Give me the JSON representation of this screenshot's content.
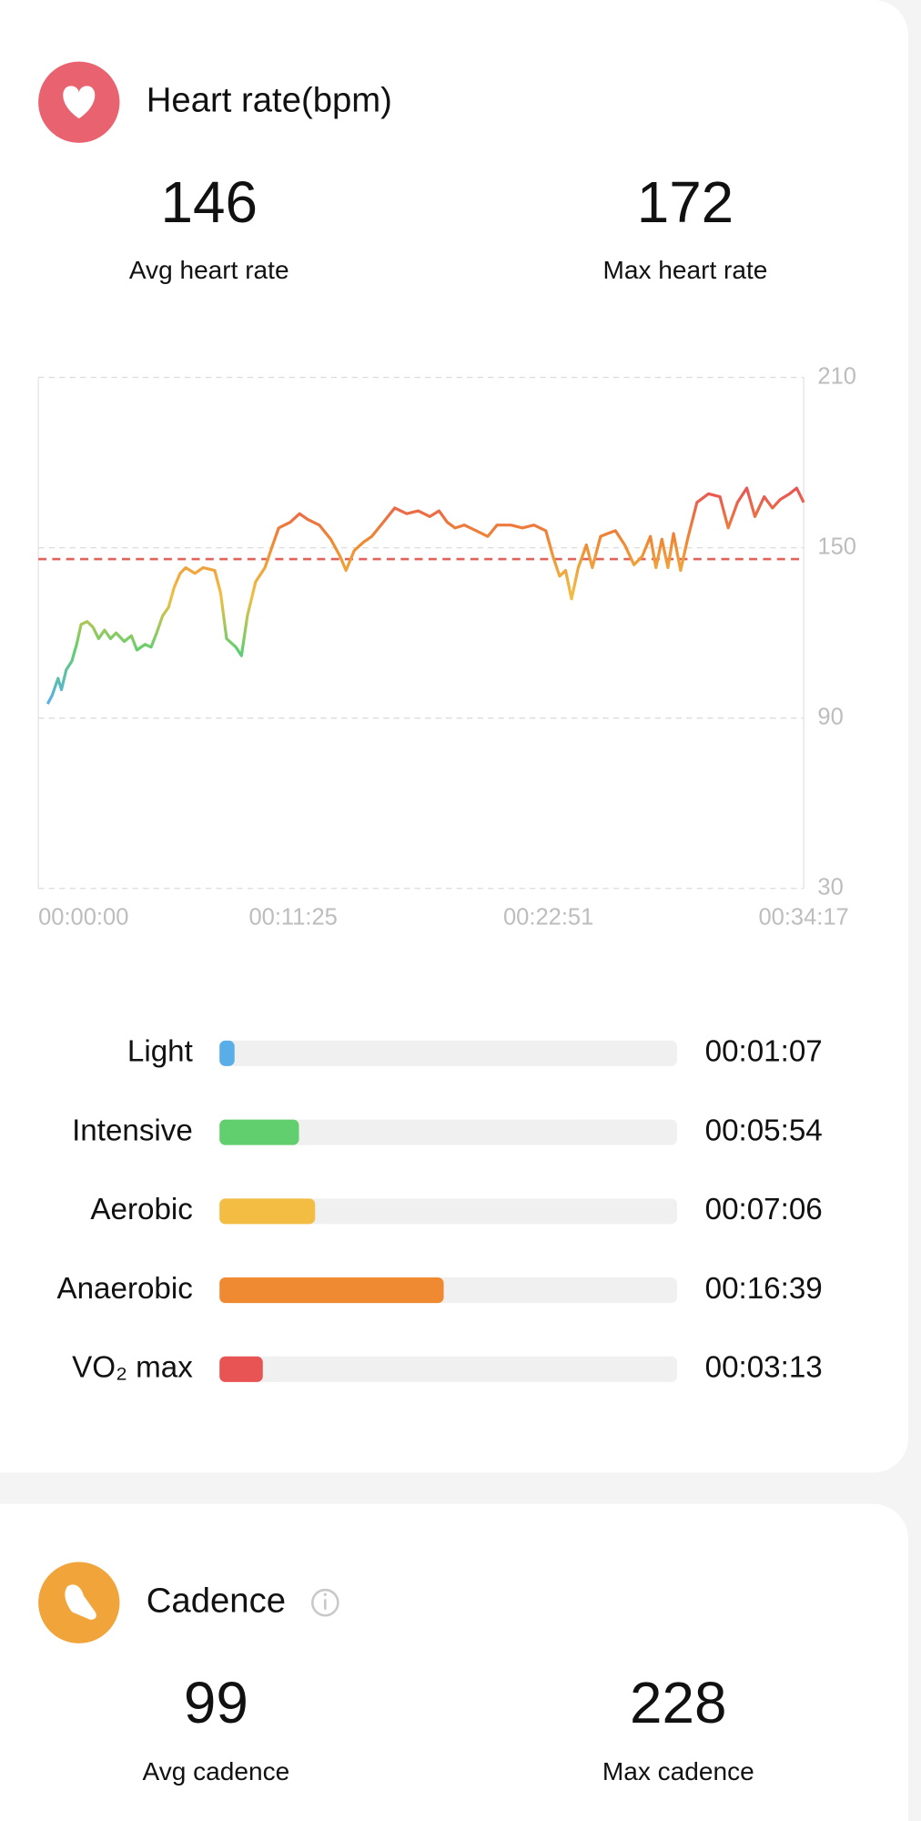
{
  "heart_rate": {
    "title": "Heart rate(bpm)",
    "stats": [
      {
        "value": 146,
        "label": "Avg heart rate"
      },
      {
        "value": 172,
        "label": "Max heart rate"
      }
    ],
    "zones": [
      {
        "name": "Light",
        "duration": "00:01:07",
        "color": "#5aaee8"
      },
      {
        "name": "Intensive",
        "duration": "00:05:54",
        "color": "#62cf6e"
      },
      {
        "name": "Aerobic",
        "duration": "00:07:06",
        "color": "#f2bd42"
      },
      {
        "name": "Anaerobic",
        "duration": "00:16:39",
        "color": "#ef8a33"
      },
      {
        "name": "VO₂ max",
        "duration": "00:03:13",
        "color": "#e85454"
      }
    ]
  },
  "chart_data": {
    "type": "line",
    "x": [
      25,
      37,
      53,
      62,
      75,
      90,
      103,
      115,
      131,
      147,
      162,
      178,
      194,
      209,
      231,
      250,
      265,
      287,
      303,
      318,
      334,
      350,
      365,
      381,
      396,
      421,
      443,
      474,
      490,
      506,
      531,
      546,
      562,
      584,
      609,
      630,
      646,
      677,
      702,
      724,
      755,
      786,
      811,
      827,
      849,
      874,
      896,
      927,
      958,
      990,
      1021,
      1052,
      1077,
      1099,
      1120,
      1145,
      1177,
      1208,
      1233,
      1270,
      1301,
      1332,
      1364,
      1383,
      1401,
      1417,
      1433,
      1451,
      1473,
      1489,
      1511,
      1530,
      1551,
      1576,
      1601,
      1623,
      1645,
      1660,
      1676,
      1692,
      1707,
      1726,
      1745,
      1770,
      1801,
      1832,
      1854,
      1879,
      1904,
      1926,
      1951,
      1973,
      1994,
      2019,
      2038,
      2057
    ],
    "values": [
      95,
      98,
      104,
      100,
      107,
      110,
      116,
      123,
      124,
      122,
      118,
      121,
      118,
      120,
      117,
      119,
      114,
      116,
      115,
      120,
      126,
      129,
      136,
      141,
      143,
      141,
      143,
      142,
      134,
      118,
      115,
      112,
      126,
      138,
      143,
      151,
      157,
      159,
      162,
      160,
      158,
      153,
      147,
      142,
      149,
      152,
      154,
      159,
      164,
      162,
      163,
      161,
      163,
      159,
      157,
      158,
      156,
      154,
      158,
      158,
      157,
      158,
      156,
      147,
      140,
      142,
      132,
      143,
      151,
      143,
      154,
      155,
      156,
      151,
      144,
      147,
      154,
      143,
      153,
      143,
      155,
      142,
      153,
      166,
      169,
      168,
      157,
      166,
      171,
      161,
      168,
      164,
      167,
      169,
      171,
      166
    ],
    "xlim": [
      0,
      2057
    ],
    "xticks": [
      {
        "value": 0,
        "label": "00:00:00"
      },
      {
        "value": 685,
        "label": "00:11:25"
      },
      {
        "value": 1371,
        "label": "00:22:51"
      },
      {
        "value": 2057,
        "label": "00:34:17"
      }
    ],
    "ylim": [
      30,
      210
    ],
    "yticks": [
      30,
      90,
      150,
      210
    ],
    "grid": true
  },
  "cadence": {
    "title": "Cadence",
    "stats": [
      {
        "value": 99,
        "label": "Avg cadence"
      },
      {
        "value": 228,
        "label": "Max cadence"
      }
    ]
  }
}
